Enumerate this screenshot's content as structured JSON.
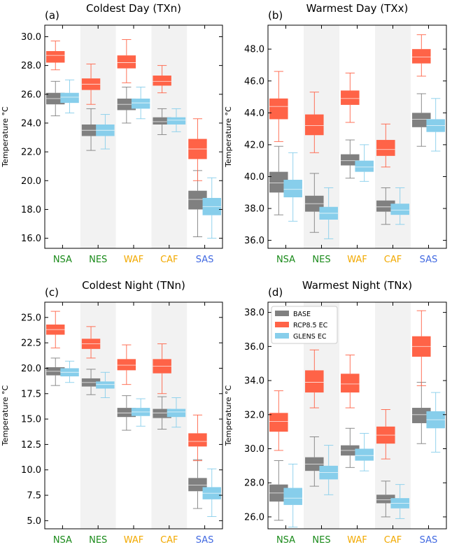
{
  "legend": {
    "entries": [
      {
        "name": "BASE",
        "color": "#808080"
      },
      {
        "name": "RCP8.5 EC",
        "color": "#ff6347"
      },
      {
        "name": "GLENS EC",
        "color": "#87ceeb"
      }
    ]
  },
  "chart_data": [
    {
      "type": "box",
      "panel_label": "(a)",
      "title": "Coldest Day (TXn)",
      "ylabel": "Temperature °C",
      "ylim": [
        15.3,
        30.8
      ],
      "yticks": [
        16.0,
        18.0,
        20.0,
        22.0,
        24.0,
        26.0,
        28.0,
        30.0
      ],
      "ytick_labels": [
        "16.0",
        "18.0",
        "20.0",
        "22.0",
        "24.0",
        "26.0",
        "28.0",
        "30.0"
      ],
      "categories": [
        "NSA",
        "NES",
        "WAF",
        "CAF",
        "SAS"
      ],
      "category_colors": [
        "#1a8a1a",
        "#1a8a1a",
        "#f2a900",
        "#f2a900",
        "#4169e1"
      ],
      "shaded_categories": [
        "NES",
        "CAF"
      ],
      "series": [
        {
          "name": "BASE",
          "color": "#808080",
          "boxes": [
            {
              "whislo": 24.5,
              "q1": 25.3,
              "med": 25.7,
              "q3": 26.1,
              "whishi": 26.9
            },
            {
              "whislo": 22.1,
              "q1": 23.1,
              "med": 23.5,
              "q3": 23.9,
              "whishi": 25.0
            },
            {
              "whislo": 24.0,
              "q1": 24.9,
              "med": 25.3,
              "q3": 25.7,
              "whishi": 26.5
            },
            {
              "whislo": 23.2,
              "q1": 23.9,
              "med": 24.1,
              "q3": 24.4,
              "whishi": 25.0
            },
            {
              "whislo": 16.1,
              "q1": 18.0,
              "med": 18.7,
              "q3": 19.3,
              "whishi": 20.7
            }
          ]
        },
        {
          "name": "RCP8.5 EC",
          "color": "#ff6347",
          "boxes": [
            {
              "whislo": 27.7,
              "q1": 28.2,
              "med": 28.7,
              "q3": 29.0,
              "whishi": 29.7
            },
            {
              "whislo": 25.3,
              "q1": 26.3,
              "med": 26.7,
              "q3": 27.1,
              "whishi": 28.1
            },
            {
              "whislo": 26.8,
              "q1": 27.8,
              "med": 28.2,
              "q3": 28.7,
              "whishi": 29.8
            },
            {
              "whislo": 26.1,
              "q1": 26.6,
              "med": 26.9,
              "q3": 27.3,
              "whishi": 28.0
            },
            {
              "whislo": 20.0,
              "q1": 21.5,
              "med": 22.2,
              "q3": 22.9,
              "whishi": 24.3
            }
          ]
        },
        {
          "name": "GLENS EC",
          "color": "#87ceeb",
          "boxes": [
            {
              "whislo": 24.7,
              "q1": 25.4,
              "med": 25.8,
              "q3": 26.1,
              "whishi": 27.0
            },
            {
              "whislo": 22.2,
              "q1": 23.1,
              "med": 23.5,
              "q3": 23.9,
              "whishi": 24.6
            },
            {
              "whislo": 24.3,
              "q1": 25.0,
              "med": 25.4,
              "q3": 25.7,
              "whishi": 26.5
            },
            {
              "whislo": 23.4,
              "q1": 23.9,
              "med": 24.2,
              "q3": 24.4,
              "whishi": 25.0
            },
            {
              "whislo": 16.0,
              "q1": 17.6,
              "med": 18.2,
              "q3": 18.8,
              "whishi": 20.2
            }
          ]
        }
      ]
    },
    {
      "type": "box",
      "panel_label": "(b)",
      "title": "Warmest Day (TXx)",
      "ylabel": "Temperature °C",
      "ylim": [
        35.5,
        49.5
      ],
      "yticks": [
        36.0,
        38.0,
        40.0,
        42.0,
        44.0,
        46.0,
        48.0
      ],
      "ytick_labels": [
        "36.0",
        "38.0",
        "40.0",
        "42.0",
        "44.0",
        "46.0",
        "48.0"
      ],
      "categories": [
        "NSA",
        "NES",
        "WAF",
        "CAF",
        "SAS"
      ],
      "category_colors": [
        "#1a8a1a",
        "#1a8a1a",
        "#f2a900",
        "#f2a900",
        "#4169e1"
      ],
      "shaded_categories": [
        "NES",
        "CAF"
      ],
      "series": [
        {
          "name": "BASE",
          "color": "#808080",
          "boxes": [
            {
              "whislo": 37.6,
              "q1": 39.0,
              "med": 39.6,
              "q3": 40.3,
              "whishi": 41.9
            },
            {
              "whislo": 36.5,
              "q1": 37.8,
              "med": 38.3,
              "q3": 38.8,
              "whishi": 40.2
            },
            {
              "whislo": 39.9,
              "q1": 40.7,
              "med": 41.0,
              "q3": 41.4,
              "whishi": 42.3
            },
            {
              "whislo": 37.0,
              "q1": 37.8,
              "med": 38.1,
              "q3": 38.5,
              "whishi": 39.3
            },
            {
              "whislo": 41.9,
              "q1": 43.1,
              "med": 43.6,
              "q3": 44.0,
              "whishi": 45.2
            }
          ]
        },
        {
          "name": "RCP8.5 EC",
          "color": "#ff6347",
          "boxes": [
            {
              "whislo": 42.2,
              "q1": 43.6,
              "med": 44.4,
              "q3": 44.9,
              "whishi": 46.6
            },
            {
              "whislo": 41.5,
              "q1": 42.6,
              "med": 43.2,
              "q3": 43.9,
              "whishi": 45.3
            },
            {
              "whislo": 43.4,
              "q1": 44.5,
              "med": 44.9,
              "q3": 45.4,
              "whishi": 46.5
            },
            {
              "whislo": 40.6,
              "q1": 41.3,
              "med": 41.7,
              "q3": 42.3,
              "whishi": 43.3
            },
            {
              "whislo": 46.3,
              "q1": 47.1,
              "med": 47.5,
              "q3": 48.0,
              "whishi": 48.9
            }
          ]
        },
        {
          "name": "GLENS EC",
          "color": "#87ceeb",
          "boxes": [
            {
              "whislo": 37.2,
              "q1": 38.7,
              "med": 39.2,
              "q3": 39.8,
              "whishi": 41.5
            },
            {
              "whislo": 36.1,
              "q1": 37.3,
              "med": 37.7,
              "q3": 38.1,
              "whishi": 39.3
            },
            {
              "whislo": 39.7,
              "q1": 40.3,
              "med": 40.6,
              "q3": 41.0,
              "whishi": 42.0
            },
            {
              "whislo": 37.0,
              "q1": 37.6,
              "med": 37.9,
              "q3": 38.3,
              "whishi": 39.3
            },
            {
              "whislo": 41.6,
              "q1": 42.8,
              "med": 43.2,
              "q3": 43.6,
              "whishi": 44.9
            }
          ]
        }
      ]
    },
    {
      "type": "box",
      "panel_label": "(c)",
      "title": "Coldest Night (TNn)",
      "ylabel": "Temperature °C",
      "ylim": [
        4.2,
        26.5
      ],
      "yticks": [
        5.0,
        7.5,
        10.0,
        12.5,
        15.0,
        17.5,
        20.0,
        22.5,
        25.0
      ],
      "ytick_labels": [
        "5.0",
        "7.5",
        "10.0",
        "12.5",
        "15.0",
        "17.5",
        "20.0",
        "22.5",
        "25.0"
      ],
      "categories": [
        "NSA",
        "NES",
        "WAF",
        "CAF",
        "SAS"
      ],
      "category_colors": [
        "#1a8a1a",
        "#1a8a1a",
        "#f2a900",
        "#f2a900",
        "#4169e1"
      ],
      "shaded_categories": [
        "NES",
        "CAF"
      ],
      "series": [
        {
          "name": "BASE",
          "color": "#808080",
          "boxes": [
            {
              "whislo": 18.3,
              "q1": 19.3,
              "med": 19.7,
              "q3": 20.1,
              "whishi": 21.0
            },
            {
              "whislo": 17.4,
              "q1": 18.2,
              "med": 18.6,
              "q3": 19.0,
              "whishi": 19.9
            },
            {
              "whislo": 13.9,
              "q1": 15.2,
              "med": 15.6,
              "q3": 16.1,
              "whishi": 17.3
            },
            {
              "whislo": 14.0,
              "q1": 15.1,
              "med": 15.6,
              "q3": 16.0,
              "whishi": 17.2
            },
            {
              "whislo": 6.2,
              "q1": 7.9,
              "med": 8.5,
              "q3": 9.2,
              "whishi": 11.0
            }
          ]
        },
        {
          "name": "RCP8.5 EC",
          "color": "#ff6347",
          "boxes": [
            {
              "whislo": 22.0,
              "q1": 23.3,
              "med": 23.8,
              "q3": 24.3,
              "whishi": 25.6
            },
            {
              "whislo": 21.0,
              "q1": 21.9,
              "med": 22.4,
              "q3": 22.9,
              "whishi": 24.1
            },
            {
              "whislo": 18.4,
              "q1": 19.8,
              "med": 20.3,
              "q3": 20.9,
              "whishi": 22.3
            },
            {
              "whislo": 17.5,
              "q1": 19.5,
              "med": 20.2,
              "q3": 20.9,
              "whishi": 22.4
            },
            {
              "whislo": 10.9,
              "q1": 12.3,
              "med": 12.8,
              "q3": 13.6,
              "whishi": 15.4
            }
          ]
        },
        {
          "name": "GLENS EC",
          "color": "#87ceeb",
          "boxes": [
            {
              "whislo": 18.6,
              "q1": 19.2,
              "med": 19.6,
              "q3": 20.0,
              "whishi": 20.7
            },
            {
              "whislo": 17.1,
              "q1": 18.0,
              "med": 18.4,
              "q3": 18.7,
              "whishi": 19.6
            },
            {
              "whislo": 14.3,
              "q1": 15.3,
              "med": 15.7,
              "q3": 16.1,
              "whishi": 17.0
            },
            {
              "whislo": 14.2,
              "q1": 15.2,
              "med": 15.7,
              "q3": 16.0,
              "whishi": 17.1
            },
            {
              "whislo": 5.4,
              "q1": 7.1,
              "med": 7.7,
              "q3": 8.3,
              "whishi": 10.1
            }
          ]
        }
      ]
    },
    {
      "type": "box",
      "panel_label": "(d)",
      "title": "Warmest Night (TNx)",
      "ylabel": "Temperature °C",
      "ylim": [
        25.3,
        38.6
      ],
      "yticks": [
        26.0,
        28.0,
        30.0,
        32.0,
        34.0,
        36.0,
        38.0
      ],
      "ytick_labels": [
        "26.0",
        "28.0",
        "30.0",
        "32.0",
        "34.0",
        "36.0",
        "38.0"
      ],
      "categories": [
        "NSA",
        "NES",
        "WAF",
        "CAF",
        "SAS"
      ],
      "category_colors": [
        "#1a8a1a",
        "#1a8a1a",
        "#f2a900",
        "#f2a900",
        "#4169e1"
      ],
      "shaded_categories": [
        "NES",
        "CAF"
      ],
      "series": [
        {
          "name": "BASE",
          "color": "#808080",
          "boxes": [
            {
              "whislo": 25.8,
              "q1": 26.9,
              "med": 27.4,
              "q3": 27.9,
              "whishi": 29.3
            },
            {
              "whislo": 27.8,
              "q1": 28.7,
              "med": 29.1,
              "q3": 29.5,
              "whishi": 30.7
            },
            {
              "whislo": 28.9,
              "q1": 29.6,
              "med": 29.9,
              "q3": 30.2,
              "whishi": 31.2
            },
            {
              "whislo": 26.0,
              "q1": 26.8,
              "med": 27.0,
              "q3": 27.3,
              "whishi": 28.1
            },
            {
              "whislo": 30.3,
              "q1": 31.5,
              "med": 32.0,
              "q3": 32.4,
              "whishi": 33.9
            }
          ]
        },
        {
          "name": "RCP8.5 EC",
          "color": "#ff6347",
          "boxes": [
            {
              "whislo": 29.9,
              "q1": 31.0,
              "med": 31.6,
              "q3": 32.1,
              "whishi": 33.4
            },
            {
              "whislo": 32.4,
              "q1": 33.3,
              "med": 33.9,
              "q3": 34.6,
              "whishi": 35.8
            },
            {
              "whislo": 32.4,
              "q1": 33.3,
              "med": 33.8,
              "q3": 34.4,
              "whishi": 35.5
            },
            {
              "whislo": 29.4,
              "q1": 30.3,
              "med": 30.8,
              "q3": 31.3,
              "whishi": 32.3
            },
            {
              "whislo": 33.7,
              "q1": 35.4,
              "med": 36.0,
              "q3": 36.6,
              "whishi": 38.1
            }
          ]
        },
        {
          "name": "GLENS EC",
          "color": "#87ceeb",
          "boxes": [
            {
              "whislo": 25.4,
              "q1": 26.7,
              "med": 27.1,
              "q3": 27.7,
              "whishi": 29.1
            },
            {
              "whislo": 27.3,
              "q1": 28.2,
              "med": 28.6,
              "q3": 29.0,
              "whishi": 30.2
            },
            {
              "whislo": 28.7,
              "q1": 29.3,
              "med": 29.6,
              "q3": 30.0,
              "whishi": 30.9
            },
            {
              "whislo": 25.9,
              "q1": 26.5,
              "med": 26.8,
              "q3": 27.1,
              "whishi": 27.9
            },
            {
              "whislo": 29.8,
              "q1": 31.2,
              "med": 31.7,
              "q3": 32.2,
              "whishi": 33.3
            }
          ]
        }
      ]
    }
  ]
}
